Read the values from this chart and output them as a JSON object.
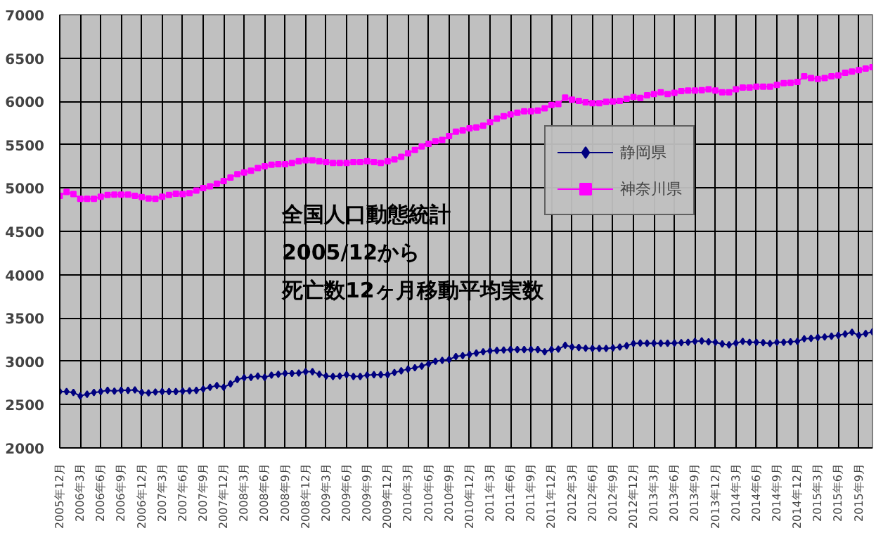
{
  "chart_data": {
    "type": "line",
    "categories": [
      "2005年12月",
      null,
      null,
      "2006年3月",
      null,
      null,
      "2006年6月",
      null,
      null,
      "2006年9月",
      null,
      null,
      "2006年12月",
      null,
      null,
      "2007年3月",
      null,
      null,
      "2007年6月",
      null,
      null,
      "2007年9月",
      null,
      null,
      "2007年12月",
      null,
      null,
      "2008年3月",
      null,
      null,
      "2008年6月",
      null,
      null,
      "2008年9月",
      null,
      null,
      "2008年12月",
      null,
      null,
      "2009年3月",
      null,
      null,
      "2009年6月",
      null,
      null,
      "2009年9月",
      null,
      null,
      "2009年12月",
      null,
      null,
      "2010年3月",
      null,
      null,
      "2010年6月",
      null,
      null,
      "2010年9月",
      null,
      null,
      "2010年12月",
      null,
      null,
      "2011年3月",
      null,
      null,
      "2011年6月",
      null,
      null,
      "2011年9月",
      null,
      null,
      "2011年12月",
      null,
      null,
      "2012年3月",
      null,
      null,
      "2012年6月",
      null,
      null,
      "2012年9月",
      null,
      null,
      "2012年12月",
      null,
      null,
      "2013年3月",
      null,
      null,
      "2013年6月",
      null,
      null,
      "2013年9月",
      null,
      null,
      "2013年12月",
      null,
      null,
      "2014年3月",
      null,
      null,
      "2014年6月",
      null,
      null,
      "2014年9月",
      null,
      null,
      "2014年12月",
      null,
      null,
      "2015年3月",
      null,
      null,
      "2015年6月",
      null,
      null,
      "2015年9月",
      null,
      null
    ],
    "series": [
      {
        "name": "静岡県",
        "color": "#000080",
        "marker": "diamond",
        "values": [
          2650,
          2650,
          2640,
          2600,
          2620,
          2640,
          2650,
          2665,
          2655,
          2665,
          2665,
          2670,
          2640,
          2635,
          2645,
          2650,
          2650,
          2650,
          2655,
          2660,
          2665,
          2680,
          2700,
          2720,
          2700,
          2740,
          2790,
          2810,
          2815,
          2830,
          2815,
          2840,
          2850,
          2860,
          2860,
          2865,
          2880,
          2880,
          2850,
          2830,
          2825,
          2830,
          2845,
          2825,
          2825,
          2840,
          2845,
          2845,
          2845,
          2870,
          2890,
          2910,
          2925,
          2945,
          2970,
          3000,
          3010,
          3020,
          3055,
          3065,
          3080,
          3095,
          3110,
          3120,
          3125,
          3130,
          3135,
          3135,
          3135,
          3135,
          3135,
          3110,
          3135,
          3140,
          3185,
          3165,
          3160,
          3150,
          3148,
          3148,
          3148,
          3155,
          3165,
          3180,
          3205,
          3210,
          3208,
          3208,
          3208,
          3208,
          3210,
          3215,
          3220,
          3230,
          3235,
          3225,
          3220,
          3200,
          3190,
          3210,
          3230,
          3220,
          3220,
          3215,
          3205,
          3220,
          3220,
          3225,
          3230,
          3260,
          3265,
          3275,
          3280,
          3290,
          3300,
          3315,
          3335,
          3300,
          3320,
          3340
        ]
      },
      {
        "name": "神奈川県",
        "color": "#ff00ff",
        "marker": "square",
        "values": [
          4910,
          4955,
          4930,
          4875,
          4875,
          4875,
          4900,
          4920,
          4925,
          4925,
          4925,
          4910,
          4895,
          4880,
          4875,
          4900,
          4920,
          4935,
          4930,
          4940,
          4970,
          5000,
          5020,
          5050,
          5080,
          5120,
          5160,
          5180,
          5200,
          5230,
          5250,
          5270,
          5275,
          5275,
          5290,
          5310,
          5320,
          5320,
          5310,
          5300,
          5290,
          5290,
          5290,
          5300,
          5300,
          5310,
          5300,
          5290,
          5310,
          5330,
          5360,
          5400,
          5440,
          5480,
          5510,
          5540,
          5555,
          5600,
          5650,
          5665,
          5690,
          5700,
          5720,
          5760,
          5800,
          5830,
          5850,
          5870,
          5885,
          5885,
          5895,
          5920,
          5960,
          5970,
          6045,
          6020,
          6005,
          5990,
          5980,
          5980,
          5995,
          6000,
          6005,
          6030,
          6050,
          6040,
          6070,
          6085,
          6105,
          6085,
          6100,
          6120,
          6125,
          6125,
          6130,
          6140,
          6125,
          6105,
          6105,
          6140,
          6160,
          6160,
          6170,
          6170,
          6170,
          6190,
          6210,
          6215,
          6225,
          6290,
          6270,
          6260,
          6270,
          6290,
          6300,
          6330,
          6345,
          6360,
          6380,
          6395
        ]
      }
    ],
    "ylim": [
      2000,
      7000
    ],
    "yticks": [
      2000,
      2500,
      3000,
      3500,
      4000,
      4500,
      5000,
      5500,
      6000,
      6500,
      7000
    ],
    "grid": true,
    "legend": "center",
    "line_style": "solid",
    "annotations": [
      "全国人口動態統計",
      "2005/12から",
      "死亡数12ヶ月移動平均実数"
    ]
  }
}
